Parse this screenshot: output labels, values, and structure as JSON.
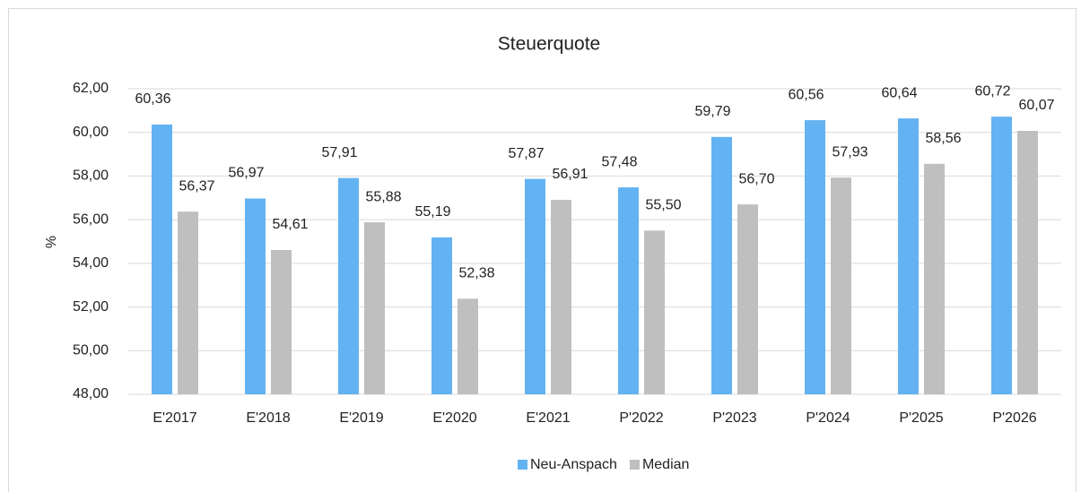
{
  "chart_data": {
    "type": "bar",
    "title": "Steuerquote",
    "y_label": "%",
    "categories": [
      "E'2017",
      "E'2018",
      "E'2019",
      "E'2020",
      "E'2021",
      "P'2022",
      "P'2023",
      "P'2024",
      "P'2025",
      "P'2026"
    ],
    "series": [
      {
        "name": "Neu-Anspach",
        "color": "#63b2f2",
        "values": [
          60.36,
          56.97,
          57.91,
          55.19,
          57.87,
          57.48,
          59.79,
          60.56,
          60.64,
          60.72
        ],
        "value_labels": [
          "60,36",
          "56,97",
          "57,91",
          "55,19",
          "57,87",
          "57,48",
          "59,79",
          "60,56",
          "60,64",
          "60,72"
        ]
      },
      {
        "name": "Median",
        "color": "#bfbfbf",
        "values": [
          56.37,
          54.61,
          55.88,
          52.38,
          56.91,
          55.5,
          56.7,
          57.93,
          58.56,
          60.07
        ],
        "value_labels": [
          "56,37",
          "54,61",
          "55,88",
          "52,38",
          "56,91",
          "55,50",
          "56,70",
          "57,93",
          "58,56",
          "60,07"
        ]
      }
    ],
    "ylim": [
      48,
      62
    ],
    "yticks": [
      {
        "value": 48,
        "label": "48,00"
      },
      {
        "value": 50,
        "label": "50,00"
      },
      {
        "value": 52,
        "label": "52,00"
      },
      {
        "value": 54,
        "label": "54,00"
      },
      {
        "value": 56,
        "label": "56,00"
      },
      {
        "value": 58,
        "label": "58,00"
      },
      {
        "value": 60,
        "label": "60,00"
      },
      {
        "value": 62,
        "label": "62,00"
      }
    ],
    "grid": true,
    "legend": "bottom"
  }
}
